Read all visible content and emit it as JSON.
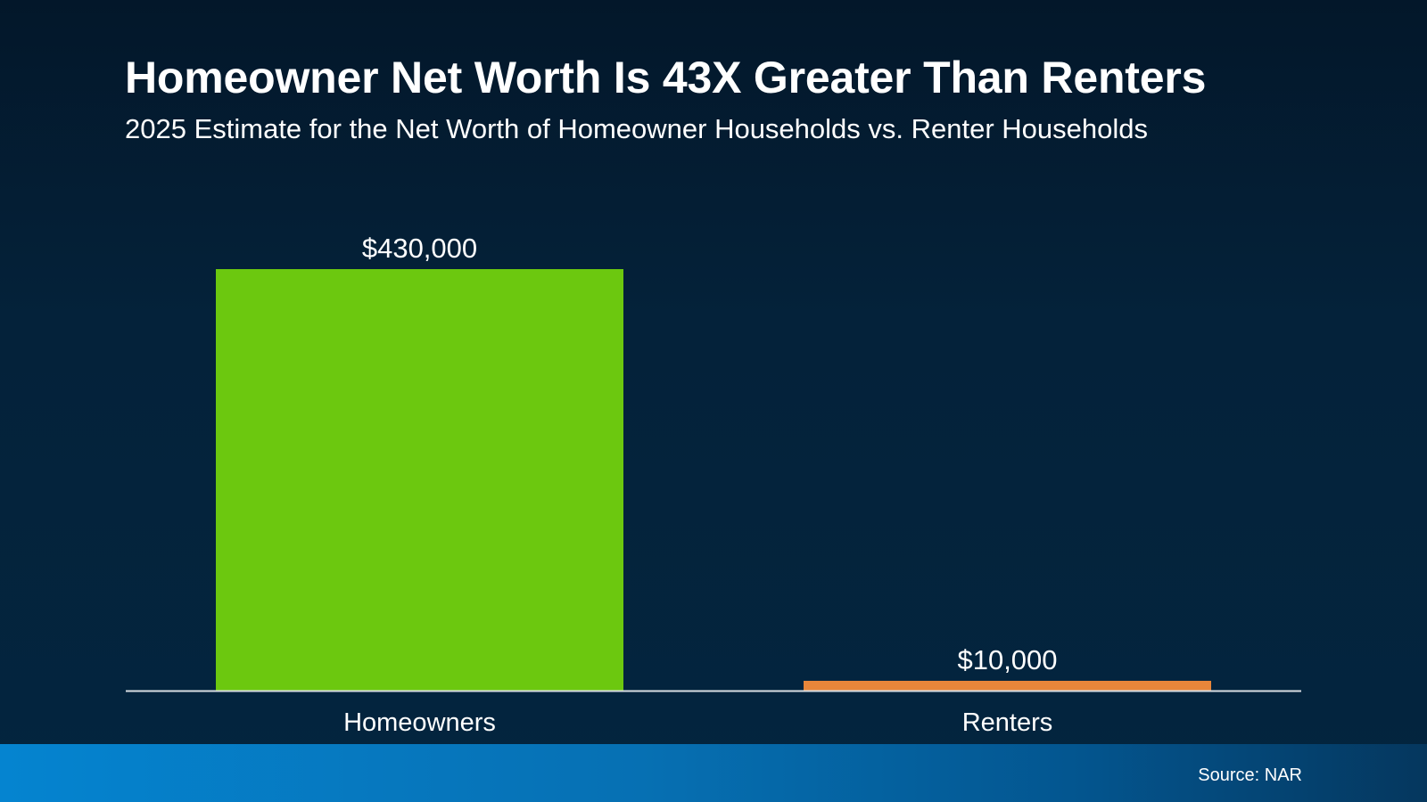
{
  "chart_data": {
    "type": "bar",
    "title": "Homeowner Net Worth Is 43X Greater Than Renters",
    "subtitle": "2025 Estimate for the Net Worth of Homeowner Households vs. Renter Households",
    "categories": [
      "Homeowners",
      "Renters"
    ],
    "values": [
      430000,
      10000
    ],
    "data_labels": [
      "$430,000",
      "$10,000"
    ],
    "colors": [
      "#6cc80f",
      "#e8863a"
    ],
    "ylim": [
      0,
      430000
    ],
    "grid": false,
    "xlabel": "",
    "ylabel": ""
  },
  "footer": {
    "source": "Source: NAR"
  }
}
